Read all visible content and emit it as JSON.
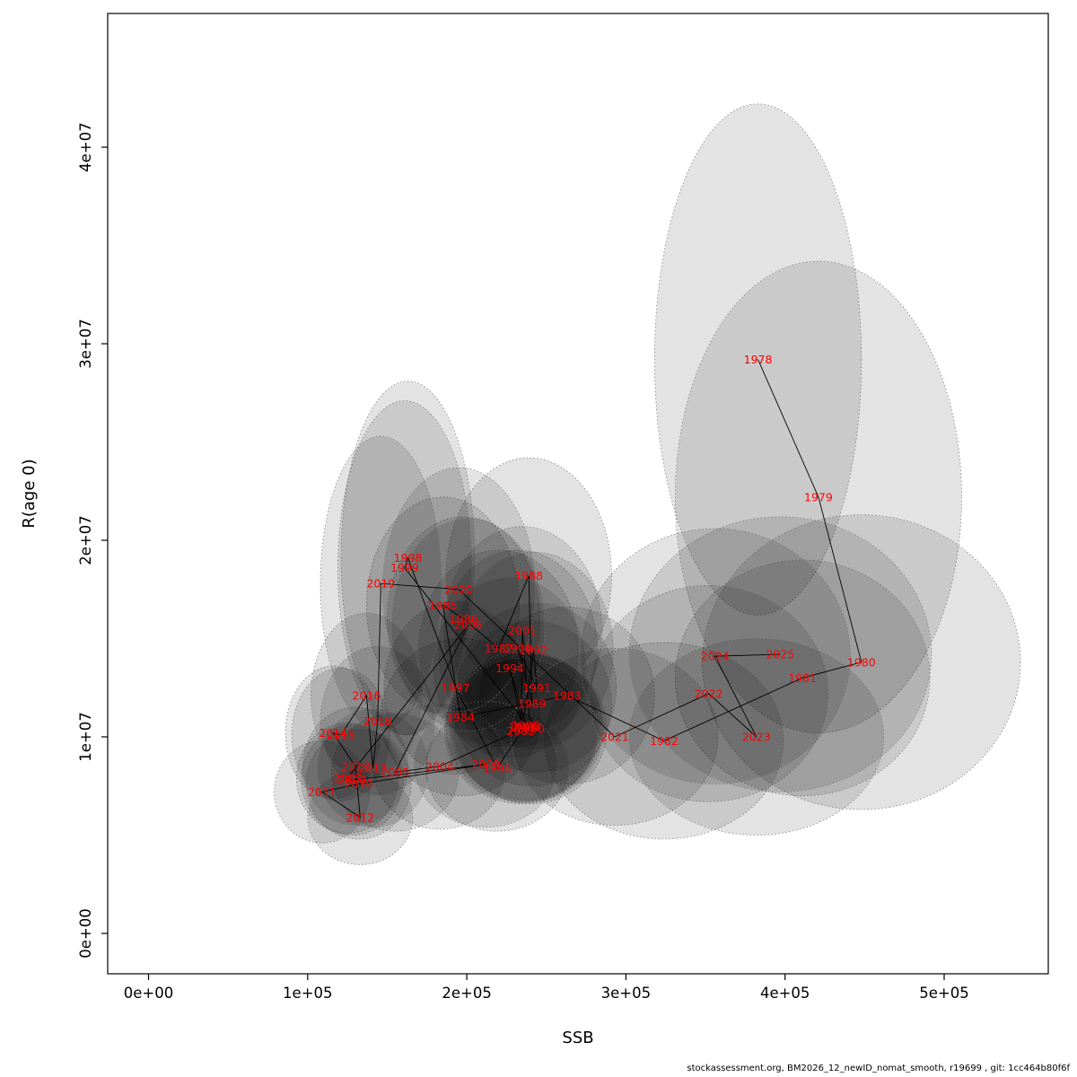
{
  "chart_data": {
    "type": "scatter",
    "title": "",
    "xlabel": "SSB",
    "ylabel": "R(age 0)",
    "xlim": [
      0,
      560000
    ],
    "ylim": [
      0,
      46000000
    ],
    "grid": false,
    "legend": "none",
    "x_ticks": [
      0,
      100000,
      200000,
      300000,
      400000,
      500000
    ],
    "x_tick_labels": [
      "0e+00",
      "1e+05",
      "2e+05",
      "3e+05",
      "4e+05",
      "5e+05"
    ],
    "y_ticks": [
      0,
      10000000,
      20000000,
      30000000,
      40000000
    ],
    "y_tick_labels": [
      "0e+00",
      "1e+07",
      "2e+07",
      "3e+07",
      "4e+07"
    ],
    "label_color": "#FF0000",
    "line_color": "#000000",
    "ellipse_fill": "#000000",
    "ellipse_fill_opacity": 0.11,
    "ellipse_stroke": "#777777",
    "points": [
      {
        "year": "1978",
        "ssb": 383000,
        "r": 29200000,
        "rx": 65000,
        "ry": 13000000
      },
      {
        "year": "1979",
        "ssb": 421000,
        "r": 22200000,
        "rx": 90000,
        "ry": 12000000
      },
      {
        "year": "1980",
        "ssb": 448000,
        "r": 13800000,
        "rx": 100000,
        "ry": 7500000
      },
      {
        "year": "1981",
        "ssb": 411000,
        "r": 13000000,
        "rx": 80000,
        "ry": 6000000
      },
      {
        "year": "1982",
        "ssb": 324000,
        "r": 9800000,
        "rx": 75000,
        "ry": 5000000
      },
      {
        "year": "1983",
        "ssb": 263000,
        "r": 12100000,
        "rx": 55000,
        "ry": 4500000
      },
      {
        "year": "1984",
        "ssb": 196000,
        "r": 11000000,
        "rx": 50000,
        "ry": 4000000
      },
      {
        "year": "1985",
        "ssb": 185000,
        "r": 16700000,
        "rx": 48000,
        "ry": 5500000
      },
      {
        "year": "1986",
        "ssb": 198000,
        "r": 16000000,
        "rx": 48000,
        "ry": 5200000
      },
      {
        "year": "1987",
        "ssb": 220000,
        "r": 14500000,
        "rx": 50000,
        "ry": 5000000
      },
      {
        "year": "1988",
        "ssb": 239000,
        "r": 18200000,
        "rx": 52000,
        "ry": 6000000
      },
      {
        "year": "1989",
        "ssb": 241000,
        "r": 11700000,
        "rx": 50000,
        "ry": 4200000
      },
      {
        "year": "1990",
        "ssb": 232000,
        "r": 14500000,
        "rx": 50000,
        "ry": 5000000
      },
      {
        "year": "1991",
        "ssb": 244000,
        "r": 12500000,
        "rx": 50000,
        "ry": 4300000
      },
      {
        "year": "1992",
        "ssb": 242000,
        "r": 14400000,
        "rx": 50000,
        "ry": 5000000
      },
      {
        "year": "1993",
        "ssb": 235000,
        "r": 10500000,
        "rx": 48000,
        "ry": 3800000
      },
      {
        "year": "1994",
        "ssb": 227000,
        "r": 13500000,
        "rx": 48000,
        "ry": 4600000
      },
      {
        "year": "1995",
        "ssb": 237000,
        "r": 10600000,
        "rx": 48000,
        "ry": 3800000
      },
      {
        "year": "1996",
        "ssb": 219000,
        "r": 8400000,
        "rx": 45000,
        "ry": 3200000
      },
      {
        "year": "1997",
        "ssb": 193000,
        "r": 12500000,
        "rx": 45000,
        "ry": 4400000
      },
      {
        "year": "1998",
        "ssb": 163000,
        "r": 19100000,
        "rx": 42000,
        "ry": 9000000
      },
      {
        "year": "1999",
        "ssb": 161000,
        "r": 18600000,
        "rx": 42000,
        "ry": 8500000
      },
      {
        "year": "2000",
        "ssb": 240000,
        "r": 10400000,
        "rx": 48000,
        "ry": 3800000
      },
      {
        "year": "2001",
        "ssb": 235000,
        "r": 15400000,
        "rx": 50000,
        "ry": 5300000
      },
      {
        "year": "2002",
        "ssb": 234000,
        "r": 10300000,
        "rx": 48000,
        "ry": 3700000
      },
      {
        "year": "2003",
        "ssb": 238000,
        "r": 10500000,
        "rx": 48000,
        "ry": 3800000
      },
      {
        "year": "2004",
        "ssb": 183000,
        "r": 8500000,
        "rx": 42000,
        "ry": 3200000
      },
      {
        "year": "2005",
        "ssb": 155000,
        "r": 8200000,
        "rx": 40000,
        "ry": 3000000
      },
      {
        "year": "2006",
        "ssb": 201000,
        "r": 15700000,
        "rx": 48000,
        "ry": 5400000
      },
      {
        "year": "2007",
        "ssb": 125000,
        "r": 7900000,
        "rx": 32000,
        "ry": 2800000
      },
      {
        "year": "2008",
        "ssb": 128000,
        "r": 7800000,
        "rx": 32000,
        "ry": 2800000
      },
      {
        "year": "2009",
        "ssb": 212000,
        "r": 8600000,
        "rx": 45000,
        "ry": 3200000
      },
      {
        "year": "2010",
        "ssb": 132000,
        "r": 7600000,
        "rx": 33000,
        "ry": 2800000
      },
      {
        "year": "2011",
        "ssb": 109000,
        "r": 7200000,
        "rx": 30000,
        "ry": 2600000
      },
      {
        "year": "2012",
        "ssb": 133000,
        "r": 5900000,
        "rx": 33000,
        "ry": 2400000
      },
      {
        "year": "2013",
        "ssb": 130000,
        "r": 8500000,
        "rx": 33000,
        "ry": 3000000
      },
      {
        "year": "2014",
        "ssb": 116000,
        "r": 10200000,
        "rx": 30000,
        "ry": 3400000
      },
      {
        "year": "2015",
        "ssb": 121000,
        "r": 10100000,
        "rx": 31000,
        "ry": 3400000
      },
      {
        "year": "2016",
        "ssb": 137000,
        "r": 12100000,
        "rx": 35000,
        "ry": 4200000
      },
      {
        "year": "2017",
        "ssb": 141000,
        "r": 8400000,
        "rx": 35000,
        "ry": 3000000
      },
      {
        "year": "2018",
        "ssb": 144000,
        "r": 10800000,
        "rx": 36000,
        "ry": 3800000
      },
      {
        "year": "2019",
        "ssb": 146000,
        "r": 17800000,
        "rx": 38000,
        "ry": 7500000
      },
      {
        "year": "2020",
        "ssb": 195000,
        "r": 17500000,
        "rx": 48000,
        "ry": 6200000
      },
      {
        "year": "2021",
        "ssb": 293000,
        "r": 10000000,
        "rx": 65000,
        "ry": 4500000
      },
      {
        "year": "2022",
        "ssb": 352000,
        "r": 12200000,
        "rx": 75000,
        "ry": 5500000
      },
      {
        "year": "2023",
        "ssb": 382000,
        "r": 10000000,
        "rx": 80000,
        "ry": 5000000
      },
      {
        "year": "2024",
        "ssb": 356000,
        "r": 14100000,
        "rx": 85000,
        "ry": 6500000
      },
      {
        "year": "2025",
        "ssb": 397000,
        "r": 14200000,
        "rx": 95000,
        "ry": 7000000
      }
    ]
  },
  "footer": {
    "text": "stockassessment.org, BM2026_12_newID_nomat_smooth, r19699 , git: 1cc464b80f6f"
  }
}
